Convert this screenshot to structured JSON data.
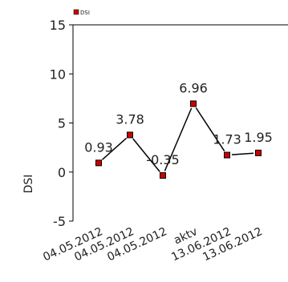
{
  "chart_data": {
    "type": "line",
    "title": "",
    "xlabel": "",
    "ylabel": "DSI",
    "ylim": [
      -5,
      15
    ],
    "yticks": [
      -5,
      0,
      5,
      10,
      15
    ],
    "grid": false,
    "legend": {
      "placement": "top-left",
      "entries": [
        "DSI"
      ]
    },
    "categories": [
      "04.05.2012",
      "04.05.2012",
      "04.05.2012",
      "aktv",
      "13.06.2012",
      "13.06.2012"
    ],
    "series": [
      {
        "name": "DSI",
        "color": "#cc0000",
        "values": [
          0.93,
          3.78,
          -0.35,
          6.96,
          1.73,
          1.95
        ],
        "labels": [
          "0.93",
          "3.78",
          "-0.35",
          "6.96",
          "1.73",
          "1.95"
        ]
      }
    ]
  }
}
